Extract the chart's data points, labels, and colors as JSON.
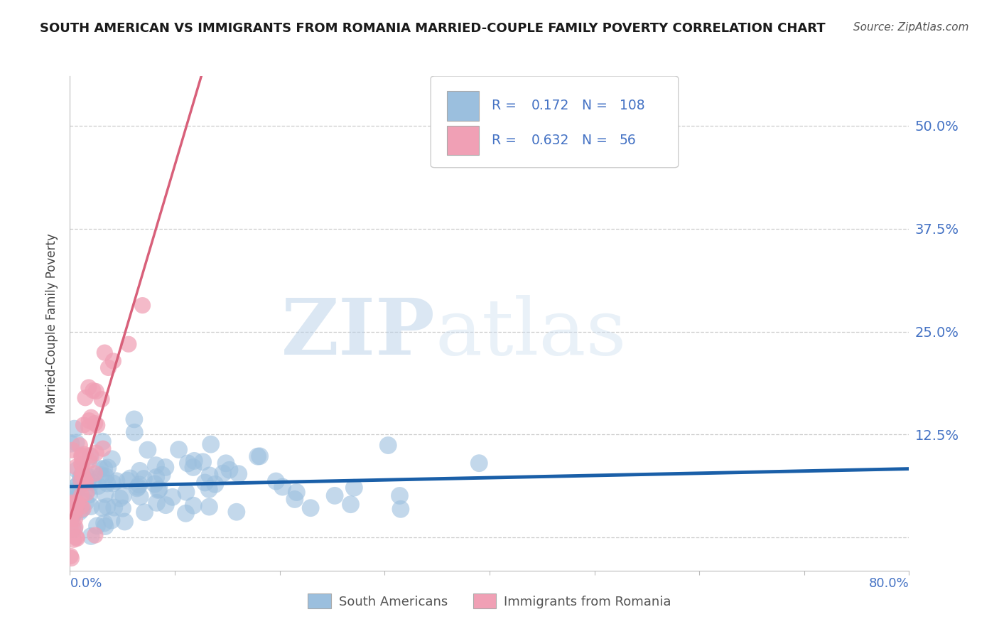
{
  "title": "SOUTH AMERICAN VS IMMIGRANTS FROM ROMANIA MARRIED-COUPLE FAMILY POVERTY CORRELATION CHART",
  "source": "Source: ZipAtlas.com",
  "ylabel": "Married-Couple Family Poverty",
  "legend_label_1": "South Americans",
  "legend_label_2": "Immigrants from Romania",
  "watermark_zip": "ZIP",
  "watermark_atlas": "atlas",
  "xlim": [
    0.0,
    0.8
  ],
  "ylim": [
    -0.04,
    0.56
  ],
  "ytick_values": [
    0.0,
    0.125,
    0.25,
    0.375,
    0.5
  ],
  "ytick_labels": [
    "",
    "12.5%",
    "25.0%",
    "37.5%",
    "50.0%"
  ],
  "xtick_values": [
    0.0,
    0.1,
    0.2,
    0.3,
    0.4,
    0.5,
    0.6,
    0.7,
    0.8
  ],
  "blue_R": 0.172,
  "blue_N": 108,
  "pink_R": 0.632,
  "pink_N": 56,
  "blue_scatter_color": "#9bbfde",
  "pink_scatter_color": "#f0a0b5",
  "blue_line_color": "#1a5fa8",
  "pink_line_color": "#d8607a",
  "axis_color": "#4472c4",
  "grid_color": "#cccccc",
  "title_color": "#1a1a1a",
  "source_color": "#555555",
  "ylabel_color": "#444444",
  "legend_text_color": "#4472c4",
  "background": "#ffffff",
  "seed": 42
}
